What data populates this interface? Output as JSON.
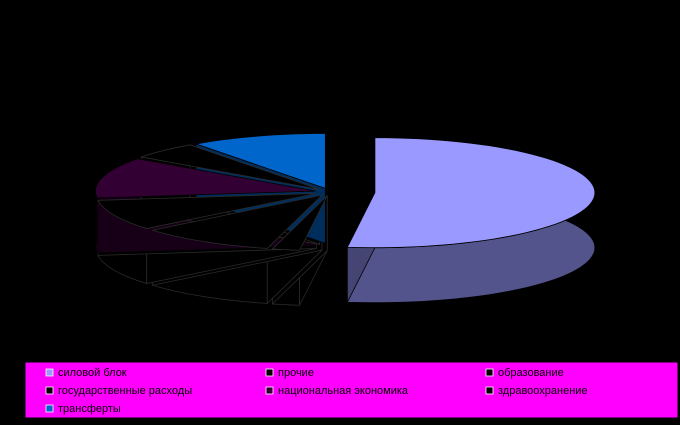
{
  "chart_data": {
    "type": "pie",
    "categories": [
      "силовой блок",
      "прочие",
      "образование",
      "государственные расходы",
      "национальная экономика",
      "здравоохранение",
      "трансферты"
    ],
    "values": [
      52,
      2,
      10,
      9,
      12,
      5,
      10
    ],
    "colors": [
      "#9999ff",
      "#000000",
      "#000000",
      "#000000",
      "#330033",
      "#000000",
      "#0066cc"
    ],
    "legend_position": "bottom"
  }
}
